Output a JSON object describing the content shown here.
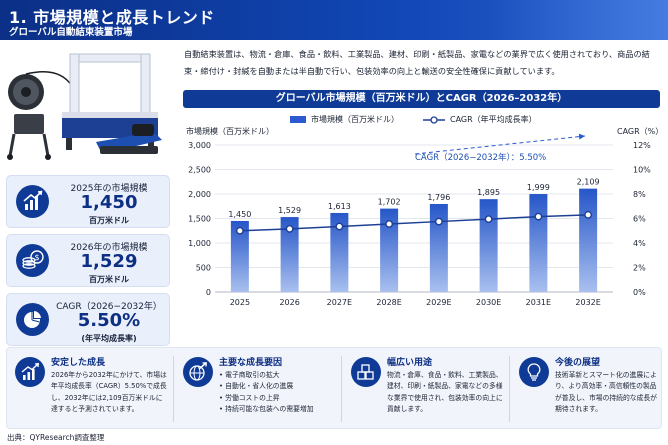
{
  "header": {
    "title": "1. 市場規模と成長トレンド",
    "subtitle": "グローバル自動結束装置市場"
  },
  "intro": "自動結束装置は、物流・倉庫、食品・飲料、工業製品、建材、印刷・紙製品、家電などの業界で広く使用されており、商品の結束・締付け・封緘を自動または半自動で行い、包装効率の向上と輸送の安全性確保に貢献しています。",
  "kpis": [
    {
      "title": "2025年の市場規模",
      "value": "1,450",
      "unit": "百万米ドル",
      "icon": "bar-chart-icon"
    },
    {
      "title": "2026年の市場規模",
      "value": "1,529",
      "unit": "百万米ドル",
      "icon": "coins-icon"
    },
    {
      "title": "CAGR（2026−2032年）",
      "value": "5.50%",
      "unit": "(年平均成長率)",
      "icon": "pie-chart-icon"
    }
  ],
  "chart_panel": {
    "title": "グローバル市場規模（百万米ドル）とCAGR（2026–2032年）",
    "legend_bar": "市場規模（百万米ドル）",
    "legend_line": "CAGR（年平均成長率）",
    "y_left_title": "市場規模（百万米ドル）",
    "y_right_title": "CAGR（%）"
  },
  "chart_data": {
    "type": "bar",
    "categories": [
      "2025",
      "2026",
      "2027E",
      "2028E",
      "2029E",
      "2030E",
      "2031E",
      "2032E"
    ],
    "series": [
      {
        "name": "市場規模（百万米ドル）",
        "type": "bar",
        "axis": "left",
        "values": [
          1450,
          1529,
          1613,
          1702,
          1796,
          1895,
          1999,
          2109
        ]
      },
      {
        "name": "CAGR（年平均成長率）",
        "type": "line",
        "axis": "right",
        "values": [
          5.0,
          5.15,
          5.35,
          5.55,
          5.75,
          5.95,
          6.15,
          6.3
        ]
      }
    ],
    "data_labels": [
      "1,450",
      "1,529",
      "1,613",
      "1,702",
      "1,796",
      "1,895",
      "1,999",
      "2,109"
    ],
    "ylim": [
      0,
      3000
    ],
    "y_ticks": [
      "0",
      "500",
      "1,000",
      "1,500",
      "2,000",
      "2,500",
      "3,000"
    ],
    "y2lim": [
      0,
      12
    ],
    "y2_ticks": [
      "0%",
      "2%",
      "4%",
      "6%",
      "8%",
      "10%",
      "12%"
    ],
    "annotation": "CAGR（2026−2032年）：5.50%",
    "grid": true,
    "legend_position": "top",
    "colors": {
      "bar_top": "#2656c8",
      "bar_bottom": "#a9c0ef",
      "line": "#1d3f94"
    }
  },
  "sections": [
    {
      "title": "安定した成長",
      "icon": "growth-chart-icon",
      "body": "2026年から2032年にかけて、市場は年平均成長率（CAGR）5.50%で成長し、2032年には2,109百万米ドルに達すると予測されています。"
    },
    {
      "title": "主要な成長要因",
      "icon": "globe-arrow-icon",
      "items": [
        "電子商取引の拡大",
        "自動化・省人化の進展",
        "労働コストの上昇",
        "持続可能な包装への需要増加"
      ]
    },
    {
      "title": "幅広い用途",
      "icon": "boxes-icon",
      "body": "物流・倉庫、食品・飲料、工業製品、建材、印刷・紙製品、家電などの多様な業界で使用され、包装効率の向上に貢献します。"
    },
    {
      "title": "今後の展望",
      "icon": "lightbulb-icon",
      "body": "技術革新とスマート化の進展により、より高効率・高信頼性の製品が普及し、市場の持続的な成長が期待されます。"
    }
  ],
  "source": "出典：QYResearch調査整理",
  "colors": {
    "primary": "#0f3a96",
    "accent": "#2d5ad0",
    "panel": "#eaf0fb"
  }
}
